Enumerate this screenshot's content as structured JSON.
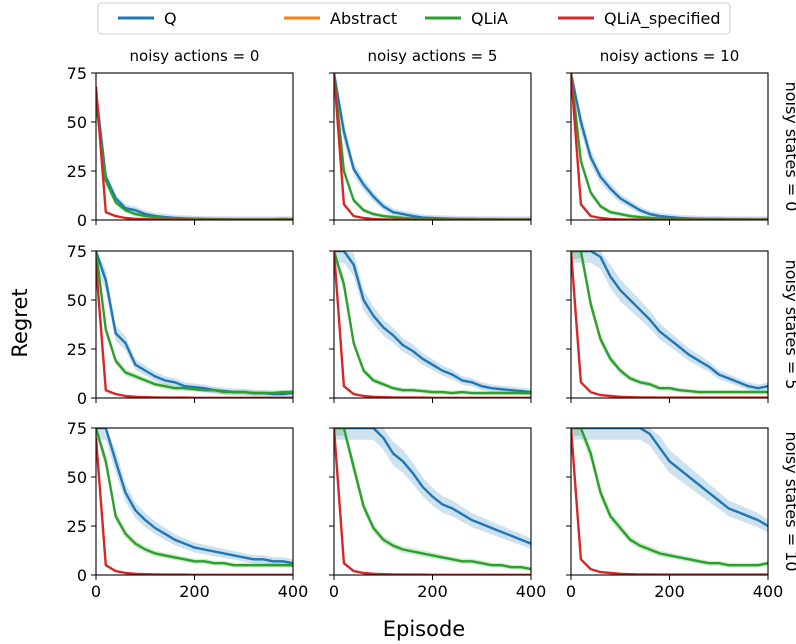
{
  "legend": [
    {
      "name": "Q",
      "color": "#1f77b4"
    },
    {
      "name": "Abstract",
      "color": "#ff7f0e"
    },
    {
      "name": "QLiA",
      "color": "#2ca02c"
    },
    {
      "name": "QLiA_specified",
      "color": "#d62728"
    }
  ],
  "figure": {
    "xlabel": "Episode",
    "ylabel": "Regret"
  },
  "chart_data": {
    "type": "line",
    "layout": "3x3 facet grid",
    "col_titles": [
      "noisy actions = 0",
      "noisy actions = 5",
      "noisy actions = 10"
    ],
    "row_titles": [
      "noisy states = 0",
      "noisy states = 5",
      "noisy states = 10"
    ],
    "xlabel": "Episode",
    "ylabel": "Regret",
    "xlim": [
      0,
      400
    ],
    "ylim": [
      0,
      75
    ],
    "xticks": [
      0,
      200,
      400
    ],
    "yticks": [
      0,
      25,
      50,
      75
    ],
    "x": [
      0,
      20,
      40,
      60,
      80,
      100,
      120,
      140,
      160,
      180,
      200,
      220,
      240,
      260,
      280,
      300,
      320,
      340,
      360,
      380,
      400
    ],
    "panels": [
      {
        "row": 0,
        "col": 0,
        "series": [
          {
            "name": "Q",
            "values": [
              65,
              22,
              11,
              6,
              5,
              3,
              2,
              1.5,
              1,
              0.8,
              0.6,
              0.5,
              0.4,
              0.4,
              0.3,
              0.3,
              0.3,
              0.3,
              0.3,
              0.3,
              0.3
            ]
          },
          {
            "name": "QLiA",
            "values": [
              60,
              20,
              9,
              5,
              3,
              2,
              1.5,
              1,
              0.8,
              0.6,
              0.5,
              0.4,
              0.4,
              0.3,
              0.3,
              0.3,
              0.3,
              0.3,
              0.3,
              0.5,
              0.3
            ]
          },
          {
            "name": "QLiA_specified",
            "values": [
              68,
              4,
              2,
              1,
              0.6,
              0.4,
              0.3,
              0.2,
              0.2,
              0.2,
              0.1,
              0.1,
              0.1,
              0.1,
              0.1,
              0.1,
              0.1,
              0.1,
              0.1,
              0.1,
              0.1
            ]
          }
        ]
      },
      {
        "row": 0,
        "col": 1,
        "series": [
          {
            "name": "Q",
            "values": [
              75,
              45,
              26,
              18,
              12,
              7,
              4,
              3,
              2,
              1.2,
              1,
              0.8,
              0.6,
              0.5,
              0.5,
              0.4,
              0.4,
              0.3,
              0.3,
              0.3,
              0.3
            ]
          },
          {
            "name": "QLiA",
            "values": [
              75,
              25,
              10,
              5,
              3,
              2,
              1.5,
              1,
              0.8,
              0.6,
              0.5,
              0.4,
              0.3,
              0.3,
              0.3,
              0.3,
              0.3,
              0.3,
              0.3,
              0.3,
              0.3
            ]
          },
          {
            "name": "QLiA_specified",
            "values": [
              75,
              8,
              2,
              1,
              0.5,
              0.3,
              0.2,
              0.2,
              0.1,
              0.1,
              0.1,
              0.1,
              0.1,
              0.1,
              0.1,
              0.1,
              0.1,
              0.1,
              0.1,
              0.1,
              0.1
            ]
          }
        ]
      },
      {
        "row": 0,
        "col": 2,
        "series": [
          {
            "name": "Q",
            "values": [
              75,
              50,
              32,
              22,
              16,
              11,
              8,
              5,
              3,
              2,
              1.5,
              1,
              0.8,
              0.6,
              0.5,
              0.5,
              0.4,
              0.4,
              0.3,
              0.3,
              0.3
            ]
          },
          {
            "name": "QLiA",
            "values": [
              75,
              30,
              14,
              7,
              4,
              3,
              2,
              1.5,
              1,
              0.8,
              0.6,
              0.5,
              0.4,
              0.3,
              0.3,
              0.3,
              0.3,
              0.3,
              0.3,
              0.3,
              0.3
            ]
          },
          {
            "name": "QLiA_specified",
            "values": [
              75,
              8,
              2,
              1,
              0.5,
              0.3,
              0.2,
              0.2,
              0.1,
              0.1,
              0.1,
              0.1,
              0.1,
              0.1,
              0.1,
              0.1,
              0.1,
              0.1,
              0.1,
              0.1,
              0.1
            ]
          }
        ]
      },
      {
        "row": 1,
        "col": 0,
        "series": [
          {
            "name": "Q",
            "values": [
              75,
              60,
              33,
              28,
              17,
              14,
              11,
              9,
              8,
              6,
              5.5,
              5,
              4,
              3.5,
              3,
              3,
              2.5,
              2.5,
              2,
              2,
              2.5
            ]
          },
          {
            "name": "QLiA",
            "values": [
              75,
              35,
              19,
              13,
              11,
              9,
              7,
              6,
              5,
              5,
              4.5,
              4,
              4,
              3,
              3,
              3,
              2.5,
              2.5,
              2.5,
              3,
              3
            ]
          },
          {
            "name": "QLiA_specified",
            "values": [
              68,
              4,
              2,
              1,
              0.6,
              0.4,
              0.3,
              0.2,
              0.2,
              0.2,
              0.1,
              0.1,
              0.1,
              0.1,
              0.1,
              0.1,
              0.1,
              0.1,
              0.1,
              0.1,
              0.1
            ]
          }
        ]
      },
      {
        "row": 1,
        "col": 1,
        "series": [
          {
            "name": "Q",
            "values": [
              75,
              75,
              68,
              50,
              42,
              36,
              32,
              27,
              24,
              20,
              17,
              14,
              12,
              9,
              8,
              6,
              5,
              4.5,
              4,
              3.5,
              3
            ]
          },
          {
            "name": "QLiA",
            "values": [
              75,
              58,
              28,
              14,
              9,
              7,
              5,
              4,
              4,
              3.5,
              3,
              3,
              2.5,
              3,
              2.5,
              2.5,
              2.5,
              2.5,
              2.5,
              2.5,
              2.5
            ]
          },
          {
            "name": "QLiA_specified",
            "values": [
              75,
              6,
              2,
              1,
              0.6,
              0.4,
              0.3,
              0.2,
              0.2,
              0.2,
              0.1,
              0.1,
              0.1,
              0.1,
              0.1,
              0.1,
              0.1,
              0.1,
              0.1,
              0.1,
              0.1
            ]
          }
        ]
      },
      {
        "row": 1,
        "col": 2,
        "series": [
          {
            "name": "Q",
            "values": [
              75,
              75,
              75,
              72,
              62,
              55,
              50,
              45,
              40,
              34,
              30,
              26,
              22,
              19,
              16,
              12,
              10,
              8,
              6,
              5,
              6
            ]
          },
          {
            "name": "QLiA",
            "values": [
              75,
              75,
              48,
              30,
              20,
              14,
              10,
              8,
              7,
              5,
              5,
              4,
              3.5,
              3,
              3,
              3,
              3,
              3,
              3,
              3,
              3
            ]
          },
          {
            "name": "QLiA_specified",
            "values": [
              75,
              8,
              3,
              1.5,
              1,
              0.6,
              0.4,
              0.3,
              0.3,
              0.2,
              0.2,
              0.2,
              0.2,
              0.2,
              0.2,
              0.2,
              0.2,
              0.2,
              0.2,
              0.2,
              0.2
            ]
          }
        ]
      },
      {
        "row": 2,
        "col": 0,
        "series": [
          {
            "name": "Q",
            "values": [
              75,
              75,
              58,
              42,
              33,
              28,
              24,
              21,
              18,
              16,
              14,
              13,
              12,
              11,
              10,
              9,
              8,
              8,
              7,
              7,
              6
            ]
          },
          {
            "name": "QLiA",
            "values": [
              75,
              58,
              30,
              21,
              16,
              13,
              11,
              10,
              9,
              8,
              7,
              7,
              6,
              6,
              5,
              5,
              5,
              5,
              5,
              5,
              5
            ]
          },
          {
            "name": "QLiA_specified",
            "values": [
              70,
              5,
              2,
              1,
              0.6,
              0.4,
              0.3,
              0.2,
              0.2,
              0.2,
              0.1,
              0.1,
              0.1,
              0.1,
              0.1,
              0.1,
              0.1,
              0.1,
              0.1,
              0.1,
              0.1
            ]
          }
        ]
      },
      {
        "row": 2,
        "col": 1,
        "series": [
          {
            "name": "Q",
            "values": [
              75,
              75,
              75,
              75,
              75,
              70,
              62,
              58,
              52,
              45,
              40,
              36,
              34,
              31,
              28,
              26,
              24,
              22,
              20,
              18,
              16
            ]
          },
          {
            "name": "QLiA",
            "values": [
              75,
              75,
              55,
              35,
              24,
              18,
              15,
              13,
              12,
              11,
              10,
              9,
              8,
              7,
              7,
              6,
              5,
              5,
              4,
              4,
              3
            ]
          },
          {
            "name": "QLiA_specified",
            "values": [
              75,
              6,
              2,
              1,
              0.6,
              0.4,
              0.3,
              0.2,
              0.2,
              0.2,
              0.1,
              0.1,
              0.1,
              0.1,
              0.1,
              0.1,
              0.1,
              0.1,
              0.1,
              0.1,
              0.1
            ]
          }
        ]
      },
      {
        "row": 2,
        "col": 2,
        "series": [
          {
            "name": "Q",
            "values": [
              75,
              75,
              75,
              75,
              75,
              75,
              75,
              75,
              72,
              65,
              58,
              54,
              50,
              46,
              42,
              38,
              34,
              32,
              30,
              28,
              25
            ]
          },
          {
            "name": "QLiA",
            "values": [
              75,
              75,
              62,
              42,
              30,
              24,
              18,
              15,
              13,
              11,
              10,
              9,
              8,
              7,
              6,
              6,
              5,
              5,
              5,
              5,
              6
            ]
          },
          {
            "name": "QLiA_specified",
            "values": [
              75,
              8,
              3,
              1.5,
              1,
              0.6,
              0.4,
              0.3,
              0.3,
              0.2,
              0.2,
              0.2,
              0.2,
              0.2,
              0.2,
              0.2,
              0.2,
              0.2,
              0.2,
              0.2,
              0.2
            ]
          }
        ]
      }
    ]
  }
}
